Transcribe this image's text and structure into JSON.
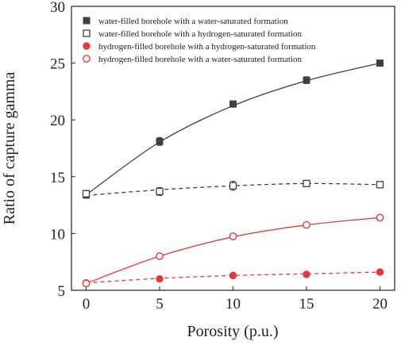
{
  "chart_data": {
    "type": "scatter",
    "xlabel": "Porosity (p.u.)",
    "ylabel": "Ratio of capture gamma",
    "xlim": [
      -1,
      21
    ],
    "ylim": [
      5,
      30
    ],
    "xticks": [
      0,
      5,
      10,
      15,
      20
    ],
    "yticks": [
      5,
      10,
      15,
      20,
      25,
      30
    ],
    "grid": false,
    "legend_position": "top-left",
    "series": [
      {
        "name": "water-filled borehole with a water-saturated formation",
        "x": [
          0,
          5,
          10,
          15,
          20
        ],
        "y": [
          13.4,
          18.1,
          21.4,
          23.5,
          25.0
        ],
        "err": [
          0.3,
          0.35,
          0.15,
          0.3,
          0.1
        ],
        "marker": "square-filled",
        "color": "#404040",
        "fit": "solid",
        "fit_y": [
          13.4,
          18.05,
          21.25,
          23.45,
          25.0
        ]
      },
      {
        "name": "water-filled borehole with a hydrogen-saturated formation",
        "x": [
          0,
          5,
          10,
          15,
          20
        ],
        "y": [
          13.5,
          13.7,
          14.2,
          14.4,
          14.3
        ],
        "err": [
          0.3,
          0.35,
          0.4,
          0.2,
          0.1
        ],
        "marker": "square-open",
        "color": "#404040",
        "fit": "dashed",
        "fit_y": [
          13.35,
          13.85,
          14.2,
          14.4,
          14.3
        ]
      },
      {
        "name": "hydrogen-filled borehole with a hydrogen-saturated formation",
        "x": [
          0,
          5,
          10,
          15,
          20
        ],
        "y": [
          5.65,
          6.0,
          6.3,
          6.4,
          6.6
        ],
        "err": [
          0.1,
          0.1,
          0.1,
          0.1,
          0.1
        ],
        "marker": "circle-filled",
        "color": "#e8383d",
        "fit": "dashed",
        "fit_y": [
          5.65,
          6.05,
          6.3,
          6.45,
          6.6
        ]
      },
      {
        "name": "hydrogen-filled borehole with a water-saturated formation",
        "x": [
          0,
          5,
          10,
          15,
          20
        ],
        "y": [
          5.6,
          8.0,
          9.75,
          10.75,
          11.4
        ],
        "err": [
          0.1,
          0.1,
          0.15,
          0.1,
          0.1
        ],
        "marker": "circle-open",
        "color": "#e8383d",
        "fit": "solid",
        "fit_y": [
          5.6,
          8.0,
          9.7,
          10.75,
          11.4
        ]
      }
    ]
  }
}
